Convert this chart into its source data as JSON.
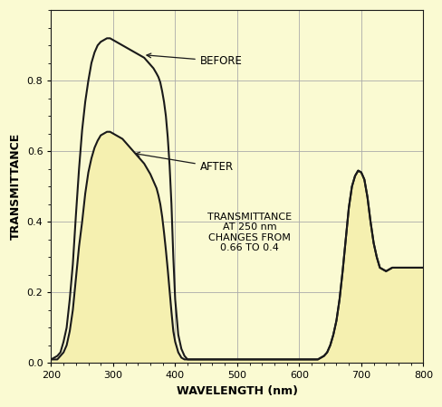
{
  "xlabel": "WAVELENGTH (nm)",
  "ylabel": "TRANSMITTANCE",
  "xlim": [
    200,
    800
  ],
  "ylim": [
    0.0,
    1.0
  ],
  "xticks": [
    200,
    300,
    400,
    500,
    600,
    700,
    800
  ],
  "yticks": [
    0.0,
    0.2,
    0.4,
    0.6,
    0.8
  ],
  "background_color": "#FAFAD2",
  "plot_bg_color": "#FAFAD2",
  "grid_color": "#AAAAAA",
  "line_color": "#1a1a1a",
  "fill_color": "#F5F0B0",
  "annotation_text": "TRANSMITTANCE\nAT 250 nm\nCHANGES FROM\n0.66 TO 0.4",
  "before_label": "BEFORE",
  "after_label": "AFTER",
  "before_x": [
    200,
    210,
    215,
    220,
    225,
    230,
    235,
    240,
    245,
    250,
    255,
    260,
    265,
    270,
    275,
    280,
    285,
    290,
    295,
    300,
    305,
    310,
    315,
    320,
    325,
    330,
    335,
    340,
    345,
    350,
    355,
    360,
    365,
    370,
    373,
    376,
    379,
    382,
    385,
    388,
    391,
    394,
    397,
    400,
    405,
    410,
    415,
    420,
    430,
    440,
    450,
    460,
    470,
    480,
    490,
    500,
    550,
    600,
    620,
    630,
    640,
    645,
    650,
    655,
    660,
    665,
    670,
    675,
    680,
    685,
    690,
    695,
    700,
    705,
    710,
    715,
    720,
    725,
    730,
    740,
    750,
    760,
    770,
    780,
    790,
    800
  ],
  "before_y": [
    0.01,
    0.02,
    0.03,
    0.06,
    0.1,
    0.18,
    0.28,
    0.42,
    0.55,
    0.66,
    0.74,
    0.8,
    0.85,
    0.88,
    0.9,
    0.91,
    0.915,
    0.92,
    0.92,
    0.915,
    0.91,
    0.905,
    0.9,
    0.895,
    0.89,
    0.885,
    0.88,
    0.875,
    0.87,
    0.865,
    0.855,
    0.845,
    0.835,
    0.82,
    0.81,
    0.795,
    0.77,
    0.74,
    0.7,
    0.64,
    0.56,
    0.45,
    0.3,
    0.18,
    0.08,
    0.04,
    0.02,
    0.01,
    0.01,
    0.01,
    0.01,
    0.01,
    0.01,
    0.01,
    0.01,
    0.01,
    0.01,
    0.01,
    0.01,
    0.01,
    0.02,
    0.03,
    0.05,
    0.08,
    0.12,
    0.18,
    0.26,
    0.35,
    0.44,
    0.5,
    0.53,
    0.545,
    0.54,
    0.52,
    0.47,
    0.4,
    0.34,
    0.3,
    0.27,
    0.26,
    0.27,
    0.27,
    0.27,
    0.27,
    0.27,
    0.27
  ],
  "after_x": [
    200,
    210,
    215,
    220,
    225,
    230,
    235,
    240,
    245,
    250,
    255,
    260,
    265,
    270,
    275,
    280,
    285,
    290,
    295,
    300,
    305,
    310,
    315,
    320,
    325,
    330,
    335,
    340,
    345,
    350,
    355,
    360,
    365,
    370,
    373,
    376,
    379,
    382,
    385,
    388,
    391,
    394,
    397,
    400,
    405,
    410,
    415,
    420,
    430,
    440,
    450,
    460,
    470,
    480,
    490,
    500,
    550,
    600,
    620,
    630,
    640,
    645,
    650,
    655,
    660,
    665,
    670,
    675,
    680,
    685,
    690,
    695,
    700,
    705,
    710,
    715,
    720,
    725,
    730,
    740,
    750,
    760,
    770,
    780,
    790,
    800
  ],
  "after_y": [
    0.01,
    0.01,
    0.02,
    0.03,
    0.05,
    0.09,
    0.15,
    0.24,
    0.33,
    0.4,
    0.48,
    0.54,
    0.58,
    0.61,
    0.63,
    0.645,
    0.65,
    0.655,
    0.655,
    0.65,
    0.645,
    0.64,
    0.635,
    0.625,
    0.615,
    0.605,
    0.595,
    0.585,
    0.575,
    0.565,
    0.55,
    0.535,
    0.515,
    0.495,
    0.475,
    0.45,
    0.415,
    0.37,
    0.32,
    0.265,
    0.205,
    0.145,
    0.09,
    0.06,
    0.03,
    0.015,
    0.01,
    0.01,
    0.01,
    0.01,
    0.01,
    0.01,
    0.01,
    0.01,
    0.01,
    0.01,
    0.01,
    0.01,
    0.01,
    0.01,
    0.02,
    0.03,
    0.05,
    0.08,
    0.12,
    0.18,
    0.26,
    0.35,
    0.44,
    0.5,
    0.53,
    0.545,
    0.54,
    0.52,
    0.47,
    0.4,
    0.34,
    0.3,
    0.27,
    0.26,
    0.27,
    0.27,
    0.27,
    0.27,
    0.27,
    0.27
  ]
}
